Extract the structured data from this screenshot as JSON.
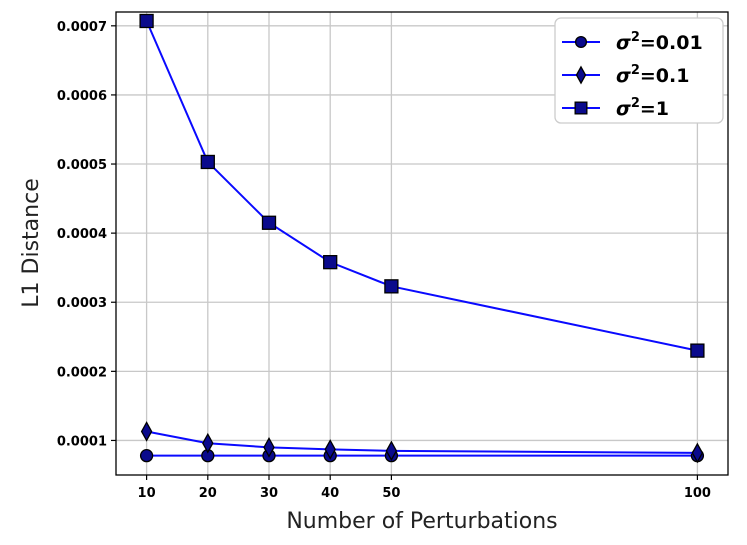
{
  "chart_data": {
    "type": "line",
    "title": "",
    "xlabel": "Number of Perturbations",
    "ylabel": "L1 Distance",
    "x": [
      10,
      20,
      30,
      40,
      50,
      100
    ],
    "xlim": [
      5,
      105
    ],
    "ylim": [
      5e-05,
      0.00072
    ],
    "xticks": [
      "10",
      "20",
      "30",
      "40",
      "50",
      "100"
    ],
    "yticks": [
      0.0001,
      0.0002,
      0.0003,
      0.0004,
      0.0005,
      0.0006,
      0.0007
    ],
    "ytick_labels": [
      "0.0001",
      "0.0002",
      "0.0003",
      "0.0004",
      "0.0005",
      "0.0006",
      "0.0007"
    ],
    "grid": true,
    "legend_position": "top-right",
    "line_color": "#0a0aff",
    "marker_fill": "#0a0a8c",
    "series": [
      {
        "name": "σ²=0.01",
        "legend_base": "σ",
        "legend_sup": "2",
        "legend_tail": "=0.01",
        "marker": "circle",
        "values": [
          7.8e-05,
          7.8e-05,
          7.8e-05,
          7.8e-05,
          7.8e-05,
          7.8e-05
        ]
      },
      {
        "name": "σ²=0.1",
        "legend_base": "σ",
        "legend_sup": "2",
        "legend_tail": "=0.1",
        "marker": "diamond",
        "values": [
          0.000113,
          9.6e-05,
          9e-05,
          8.7e-05,
          8.5e-05,
          8.2e-05
        ]
      },
      {
        "name": "σ²=1",
        "legend_base": "σ",
        "legend_sup": "2",
        "legend_tail": "=1",
        "marker": "square",
        "values": [
          0.000707,
          0.000503,
          0.000415,
          0.000358,
          0.000323,
          0.00023
        ]
      }
    ]
  }
}
